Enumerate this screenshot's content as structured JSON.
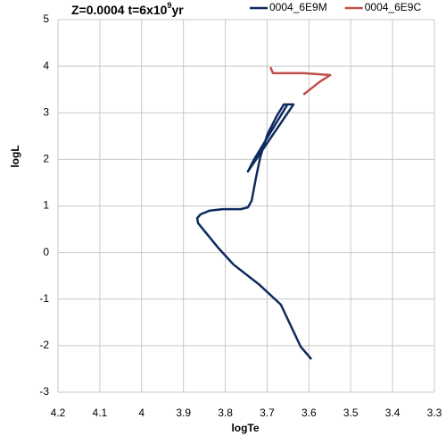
{
  "chart_data": {
    "type": "line",
    "title": [
      "Z=0.0004 t=6x10",
      "9",
      "yr"
    ],
    "x_label": "logTe",
    "y_label": "logL",
    "xlim": [
      4.2,
      3.3
    ],
    "xticks": [
      4.2,
      4.1,
      4,
      3.9,
      3.8,
      3.7,
      3.6,
      3.5,
      3.4,
      3.3
    ],
    "ylim": [
      -3,
      5
    ],
    "yticks": [
      5,
      4,
      3,
      2,
      1,
      0,
      -1,
      -2,
      -3
    ],
    "grid": true,
    "legend": "top-right",
    "series": [
      {
        "name": "0004_6E9M",
        "color": "#0e2a5e",
        "x": [
          3.594,
          3.62,
          3.667,
          3.72,
          3.78,
          3.816,
          3.865,
          3.867,
          3.859,
          3.837,
          3.806,
          3.763,
          3.746,
          3.737,
          3.727,
          3.716,
          3.699,
          3.677,
          3.66,
          3.645,
          3.637,
          3.746,
          3.731,
          3.652
        ],
        "values": [
          -2.29,
          -2.02,
          -1.12,
          -0.68,
          -0.26,
          0.09,
          0.63,
          0.74,
          0.82,
          0.9,
          0.93,
          0.93,
          0.97,
          1.11,
          1.59,
          2.06,
          2.54,
          2.93,
          3.18,
          3.18,
          3.18,
          1.74,
          2.0,
          3.17
        ]
      },
      {
        "name": "0004_6E9C",
        "color": "#c0504d",
        "x": [
          3.692,
          3.686,
          3.613,
          3.549,
          3.575,
          3.613
        ],
        "values": [
          3.98,
          3.85,
          3.85,
          3.81,
          3.66,
          3.39
        ]
      }
    ]
  }
}
